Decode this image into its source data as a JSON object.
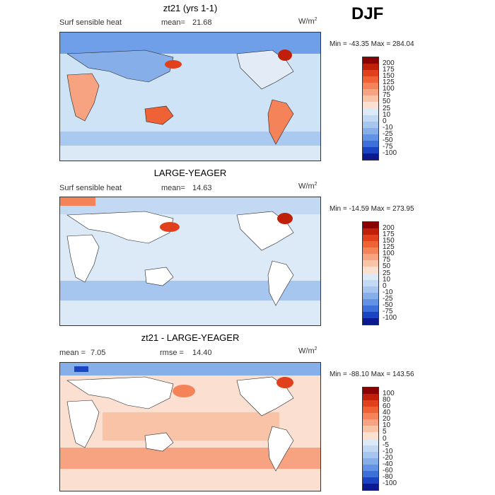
{
  "season": "DJF",
  "panels": [
    {
      "title": "zt21 (yrs 1-1)",
      "variable": "Surf sensible heat",
      "stat_label": "mean=",
      "stat_value": "21.68",
      "stat2_label": "",
      "stat2_value": "",
      "units": "W/m",
      "units_sup": "2",
      "min_label": "Min =",
      "min_value": "-43.35",
      "max_label": "Max =",
      "max_value": "284.04",
      "levels": [
        "200",
        "175",
        "150",
        "125",
        "100",
        "75",
        "50",
        "25",
        "10",
        "0",
        "-10",
        "-25",
        "-50",
        "-75",
        "-100"
      ],
      "colors": [
        "#8b0000",
        "#c0200a",
        "#e0401b",
        "#ef6236",
        "#f4835a",
        "#f7a381",
        "#f9c3a8",
        "#fbe0d1",
        "#dce9f7",
        "#c3d8f2",
        "#a6c5ef",
        "#86afea",
        "#6192e4",
        "#3d70d9",
        "#1a44c2",
        "#0b1a8e"
      ]
    },
    {
      "title": "LARGE-YEAGER",
      "variable": "Surf sensible heat",
      "stat_label": "mean=",
      "stat_value": "14.63",
      "stat2_label": "",
      "stat2_value": "",
      "units": "W/m",
      "units_sup": "2",
      "min_label": "Min =",
      "min_value": "-14.59",
      "max_label": "Max =",
      "max_value": "273.95",
      "levels": [
        "200",
        "175",
        "150",
        "125",
        "100",
        "75",
        "50",
        "25",
        "10",
        "0",
        "-10",
        "-25",
        "-50",
        "-75",
        "-100"
      ],
      "colors": [
        "#8b0000",
        "#c0200a",
        "#e0401b",
        "#ef6236",
        "#f4835a",
        "#f7a381",
        "#f9c3a8",
        "#fbe0d1",
        "#dce9f7",
        "#c3d8f2",
        "#a6c5ef",
        "#86afea",
        "#6192e4",
        "#3d70d9",
        "#1a44c2",
        "#0b1a8e"
      ]
    },
    {
      "title": "zt21 - LARGE-YEAGER",
      "variable": "",
      "stat_label": "mean =",
      "stat_value": "7.05",
      "stat2_label": "rmse =",
      "stat2_value": "14.40",
      "units": "W/m",
      "units_sup": "2",
      "min_label": "Min =",
      "min_value": "-88.10",
      "max_label": "Max =",
      "max_value": "143.56",
      "levels": [
        "100",
        "80",
        "60",
        "40",
        "20",
        "10",
        "5",
        "0",
        "-5",
        "-10",
        "-20",
        "-40",
        "-60",
        "-80",
        "-100"
      ],
      "colors": [
        "#8b0000",
        "#c0200a",
        "#e0401b",
        "#ef6236",
        "#f4835a",
        "#f7a381",
        "#f9c3a8",
        "#fbe0d1",
        "#dce9f7",
        "#c3d8f2",
        "#a6c5ef",
        "#86afea",
        "#6192e4",
        "#3d70d9",
        "#1a44c2",
        "#0b1a8e"
      ]
    }
  ]
}
